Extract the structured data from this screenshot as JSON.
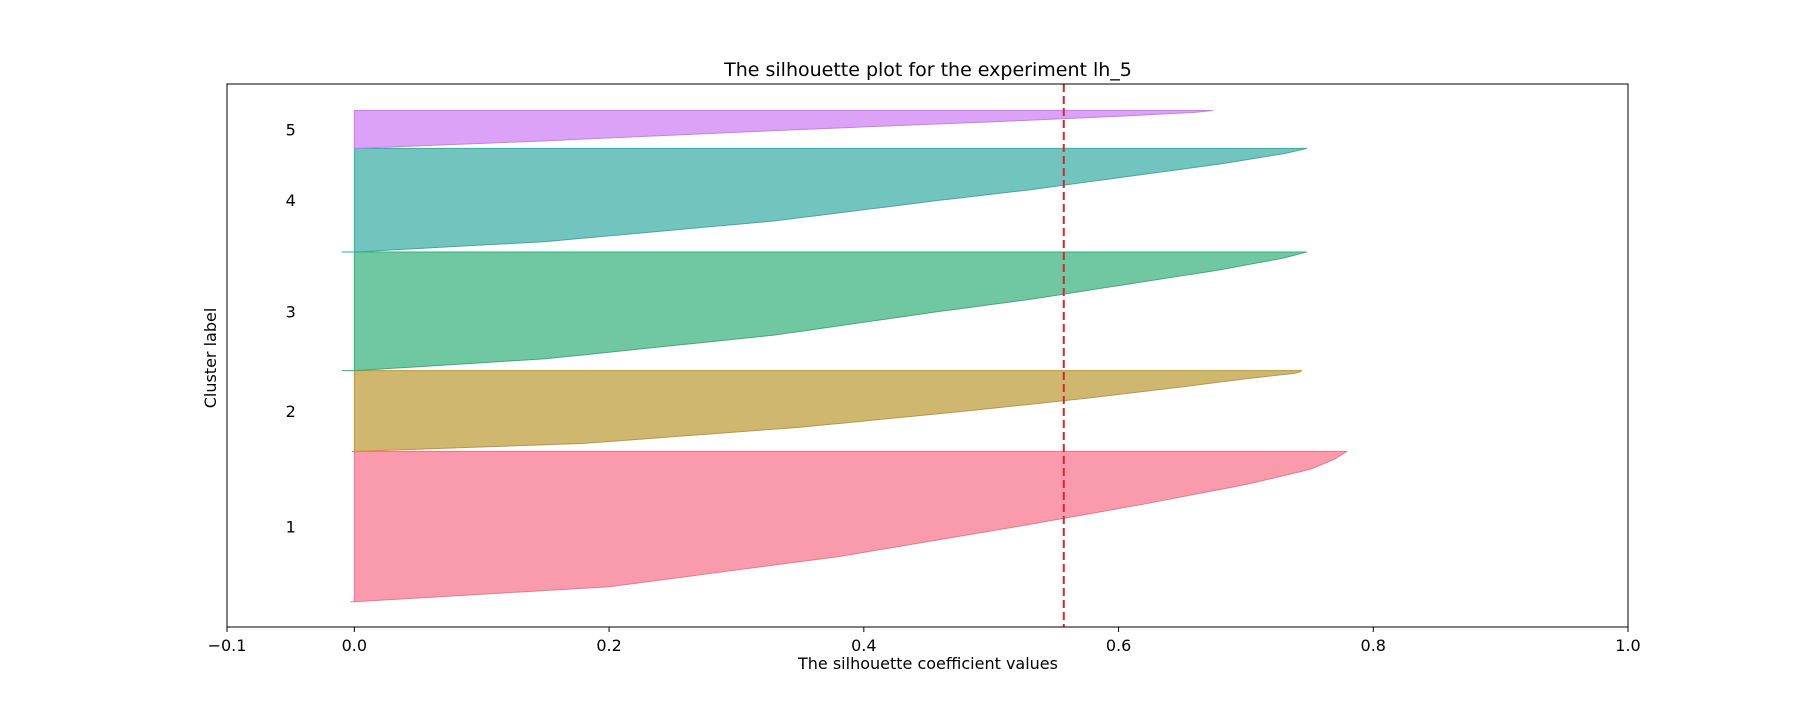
{
  "chart_data": {
    "type": "area",
    "title": "The silhouette plot for the experiment lh_5",
    "xlabel": "The silhouette coefficient values",
    "ylabel": "Cluster label",
    "xlim": [
      -0.1,
      1.0
    ],
    "ylim": [
      0,
      430
    ],
    "xticks": [
      -0.1,
      0.0,
      0.2,
      0.4,
      0.6,
      0.8,
      1.0
    ],
    "xtick_labels": [
      "−0.1",
      "0.0",
      "0.2",
      "0.4",
      "0.6",
      "0.8",
      "1.0"
    ],
    "average_silhouette": 0.557,
    "average_line_color": "#d62728",
    "grid": false,
    "clusters": [
      {
        "label": "1",
        "color": "#f77189",
        "y_start": 20,
        "y_end": 139,
        "min": -0.003,
        "max": 0.779,
        "profile": [
          [
            0,
            0.0
          ],
          [
            0.1,
            0.2
          ],
          [
            0.3,
            0.38
          ],
          [
            0.5,
            0.52
          ],
          [
            0.65,
            0.62
          ],
          [
            0.78,
            0.7
          ],
          [
            0.88,
            0.75
          ],
          [
            0.95,
            0.77
          ],
          [
            1.0,
            0.779
          ]
        ]
      },
      {
        "label": "2",
        "color": "#bb9832",
        "y_start": 139,
        "y_end": 203,
        "min": -0.002,
        "max": 0.744,
        "profile": [
          [
            0,
            0.0
          ],
          [
            0.1,
            0.18
          ],
          [
            0.3,
            0.35
          ],
          [
            0.5,
            0.48
          ],
          [
            0.65,
            0.57
          ],
          [
            0.8,
            0.65
          ],
          [
            0.9,
            0.7
          ],
          [
            0.97,
            0.74
          ],
          [
            1.0,
            0.744
          ]
        ]
      },
      {
        "label": "3",
        "color": "#33b07a",
        "y_start": 203,
        "y_end": 297,
        "min": -0.01,
        "max": 0.748,
        "profile": [
          [
            0,
            0.0
          ],
          [
            0.1,
            0.15
          ],
          [
            0.3,
            0.33
          ],
          [
            0.5,
            0.46
          ],
          [
            0.6,
            0.53
          ],
          [
            0.75,
            0.62
          ],
          [
            0.85,
            0.68
          ],
          [
            0.95,
            0.73
          ],
          [
            1.0,
            0.748
          ]
        ]
      },
      {
        "label": "4",
        "color": "#36ada4",
        "y_start": 297,
        "y_end": 379,
        "min": -0.01,
        "max": 0.748,
        "profile": [
          [
            0,
            0.0
          ],
          [
            0.1,
            0.15
          ],
          [
            0.3,
            0.33
          ],
          [
            0.5,
            0.46
          ],
          [
            0.6,
            0.53
          ],
          [
            0.75,
            0.62
          ],
          [
            0.85,
            0.68
          ],
          [
            0.95,
            0.73
          ],
          [
            1.0,
            0.748
          ]
        ]
      },
      {
        "label": "5",
        "color": "#cc7af4",
        "y_start": 379,
        "y_end": 409,
        "min": 0.0,
        "max": 0.674,
        "profile": [
          [
            0,
            0.0
          ],
          [
            0.2,
            0.15
          ],
          [
            0.5,
            0.35
          ],
          [
            0.7,
            0.5
          ],
          [
            0.85,
            0.6
          ],
          [
            0.95,
            0.66
          ],
          [
            1.0,
            0.674
          ]
        ]
      }
    ]
  }
}
